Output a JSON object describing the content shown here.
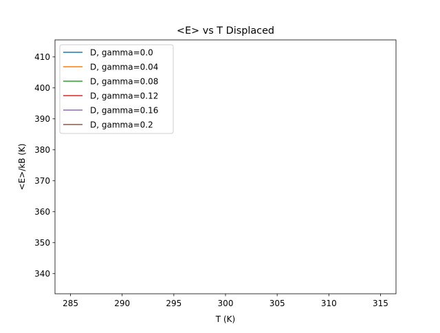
{
  "chart_data": {
    "type": "line",
    "title": "<E> vs T Displaced",
    "xlabel": "T (K)",
    "ylabel": "<E>/kB (K)",
    "xlim": [
      283.5,
      316.5
    ],
    "ylim": [
      333.5,
      415.5
    ],
    "xticks": [
      285,
      290,
      295,
      300,
      305,
      310,
      315
    ],
    "yticks": [
      340,
      350,
      360,
      370,
      380,
      390,
      400,
      410
    ],
    "grid": false,
    "legend_position": "top-left",
    "series": [
      {
        "name": "D, gamma=0.0",
        "color": "#1f77b4",
        "x": [],
        "y": []
      },
      {
        "name": "D, gamma=0.04",
        "color": "#ff7f0e",
        "x": [],
        "y": []
      },
      {
        "name": "D, gamma=0.08",
        "color": "#2ca02c",
        "x": [],
        "y": []
      },
      {
        "name": "D, gamma=0.12",
        "color": "#d62728",
        "x": [],
        "y": []
      },
      {
        "name": "D, gamma=0.16",
        "color": "#9467bd",
        "x": [],
        "y": []
      },
      {
        "name": "D, gamma=0.2",
        "color": "#8c564b",
        "x": [],
        "y": []
      }
    ]
  }
}
